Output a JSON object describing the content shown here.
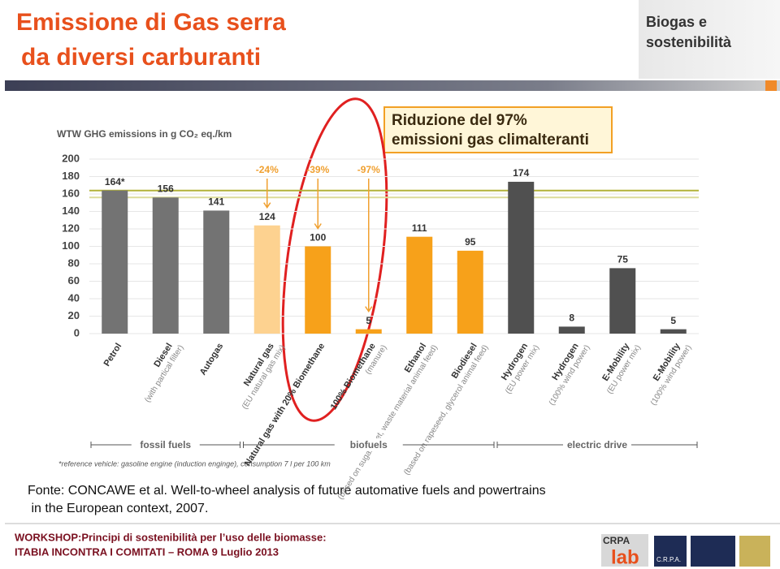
{
  "header": {
    "title_lines": [
      "Emissione di Gas serra",
      "da diversi carburanti"
    ],
    "badge_lines": [
      "Biogas e",
      "sostenibilità"
    ]
  },
  "callout": [
    "Riduzione del 97%",
    "emissioni gas climalteranti"
  ],
  "chart_data": {
    "type": "bar",
    "title": "WTW GHG emissions in g CO₂ eq./km",
    "categories": [
      "Petrol",
      "Diesel",
      "Autogas",
      "Natural gas",
      "Natural gas with 20% Biomethane",
      "100% Biomethane",
      "Ethanol",
      "Biodiesel",
      "Hydrogen",
      "Hydrogen",
      "E-Mobility",
      "E-Mobility"
    ],
    "category_notes": [
      null,
      "(with partical filter)",
      null,
      "(EU natural gas mix)",
      null,
      "(manure)",
      "(based on sugar beet, waste material animal feed)",
      "(based on rapeseed, glycerol animal feed)",
      "(EU power mix)",
      "(100% wind power)",
      "(EU power mix)",
      "(100% wind power)"
    ],
    "values": [
      164,
      156,
      141,
      124,
      100,
      5,
      111,
      95,
      174,
      8,
      75,
      5
    ],
    "value_labels": [
      "164*",
      "156",
      "141",
      "124",
      "100",
      "5",
      "111",
      "95",
      "174",
      "8",
      "75",
      "5"
    ],
    "colors": [
      "#737373",
      "#737373",
      "#737373",
      "#fdd290",
      "#f7a11a",
      "#f7a11a",
      "#f7a11a",
      "#f7a11a",
      "#505050",
      "#505050",
      "#505050",
      "#505050"
    ],
    "ylim": [
      0,
      200
    ],
    "yticks": [
      0,
      20,
      40,
      60,
      80,
      100,
      120,
      140,
      160,
      180,
      200
    ],
    "grid": true,
    "reference_lines": [
      {
        "value": 164,
        "color": "#b2b23a"
      },
      {
        "value": 156,
        "color": "#dcdc9a"
      }
    ],
    "annotations": [
      {
        "category": 3,
        "text": "-24%"
      },
      {
        "category": 4,
        "text": "-39%"
      },
      {
        "category": 5,
        "text": "-97%"
      }
    ],
    "groups": [
      {
        "name": "fossil fuels",
        "from": 0,
        "to": 2
      },
      {
        "name": "biofuels",
        "from": 3,
        "to": 7
      },
      {
        "name": "electric drive",
        "from": 8,
        "to": 11
      }
    ],
    "footnote": "*reference vehicle: gasoline engine (induction enginge), consumption 7 l per 100 km"
  },
  "source_lines": [
    "Fonte: CONCAWE et al. Well-to-wheel analysis of future automative fuels and powertrains",
    " in the European context, 2007."
  ],
  "footer_lines": [
    "WORKSHOP:Principi di sostenibilità per l’uso delle biomasse:",
    "ITABIA INCONTRA I COMITATI – ROMA 9 Luglio 2013"
  ],
  "logos": [
    "CRPA",
    "lab",
    "C.R.P.A."
  ]
}
